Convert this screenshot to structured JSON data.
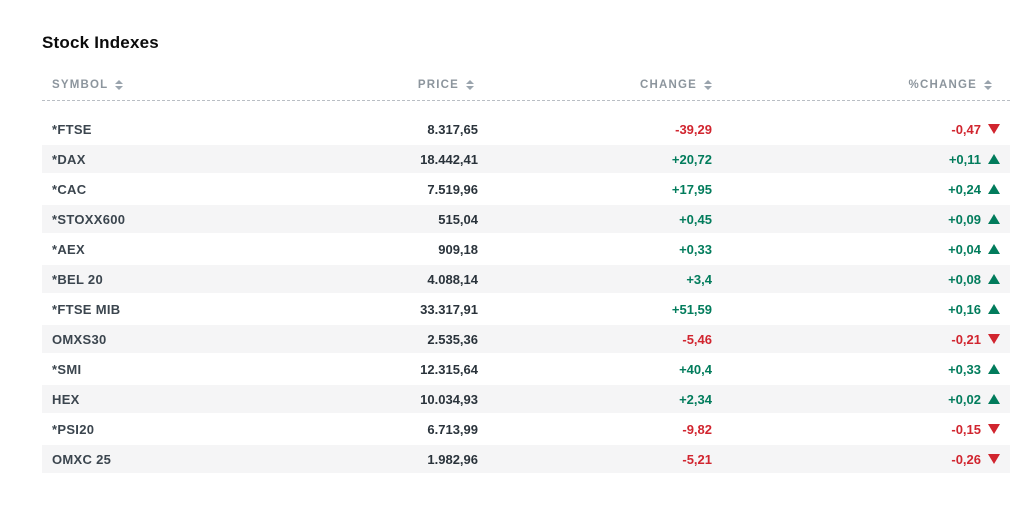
{
  "page": {
    "title": "Stock Indexes"
  },
  "table": {
    "columns": [
      {
        "label": "SYMBOL"
      },
      {
        "label": "PRICE"
      },
      {
        "label": "CHANGE"
      },
      {
        "label": "%CHANGE"
      }
    ],
    "rows": [
      {
        "symbol": "*FTSE",
        "price": "8.317,65",
        "change": "-39,29",
        "pct_change": "-0,47",
        "direction": "down"
      },
      {
        "symbol": "*DAX",
        "price": "18.442,41",
        "change": "+20,72",
        "pct_change": "+0,11",
        "direction": "up"
      },
      {
        "symbol": "*CAC",
        "price": "7.519,96",
        "change": "+17,95",
        "pct_change": "+0,24",
        "direction": "up"
      },
      {
        "symbol": "*STOXX600",
        "price": "515,04",
        "change": "+0,45",
        "pct_change": "+0,09",
        "direction": "up"
      },
      {
        "symbol": "*AEX",
        "price": "909,18",
        "change": "+0,33",
        "pct_change": "+0,04",
        "direction": "up"
      },
      {
        "symbol": "*BEL 20",
        "price": "4.088,14",
        "change": "+3,4",
        "pct_change": "+0,08",
        "direction": "up"
      },
      {
        "symbol": "*FTSE MIB",
        "price": "33.317,91",
        "change": "+51,59",
        "pct_change": "+0,16",
        "direction": "up"
      },
      {
        "symbol": "OMXS30",
        "price": "2.535,36",
        "change": "-5,46",
        "pct_change": "-0,21",
        "direction": "down"
      },
      {
        "symbol": "*SMI",
        "price": "12.315,64",
        "change": "+40,4",
        "pct_change": "+0,33",
        "direction": "up"
      },
      {
        "symbol": "HEX",
        "price": "10.034,93",
        "change": "+2,34",
        "pct_change": "+0,02",
        "direction": "up"
      },
      {
        "symbol": "*PSI20",
        "price": "6.713,99",
        "change": "-9,82",
        "pct_change": "-0,15",
        "direction": "down"
      },
      {
        "symbol": "OMXC 25",
        "price": "1.982,96",
        "change": "-5,21",
        "pct_change": "-0,26",
        "direction": "down"
      }
    ]
  },
  "icons": {
    "sort": "sort-arrows",
    "up": "up-triangle",
    "down": "down-triangle"
  },
  "colors": {
    "positive": "#027c5c",
    "negative": "#d1252f",
    "header_text": "#8c959d",
    "row_alt_bg": "#f5f5f6"
  }
}
